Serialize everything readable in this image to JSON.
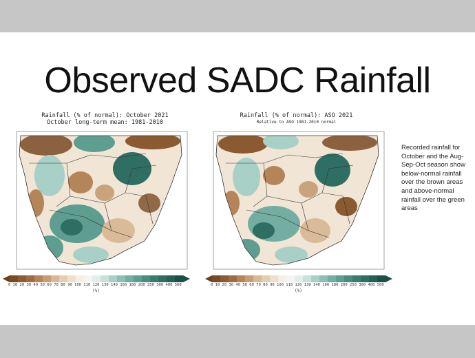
{
  "slide": {
    "title": "Observed SADC Rainfall",
    "description": "Recorded rainfall for October and the Aug-Sep-Oct season show below-normal rainfall over the brown areas and above-normal rainfall over the green areas"
  },
  "maps": [
    {
      "title_line1": "Rainfall (% of normal): October 2021",
      "title_line2": "October long-term mean: 1981-2010",
      "legend_ticks": "0  10  20  30  40  50  60  70  80  90 100 110 120 130 140 160 180 200 250 300 400 500",
      "unit": "(%)"
    },
    {
      "title_line1": "Rainfall (% of normal): ASO 2021",
      "title_line2": "Relative to ASO 1981-2010 normal",
      "legend_ticks": "0  10  20  30  40  50  60  70  80  90 100 110 120 130 140 160 180 200 250 300 400 500",
      "unit": "(%)"
    }
  ],
  "colors": {
    "brown_dark": "#7a4a24",
    "brown": "#b5855a",
    "tan": "#e8d3b8",
    "neutral": "#f4f1ec",
    "green_light": "#a9d0c7",
    "green": "#5d9e91",
    "green_dark": "#2f6e63"
  }
}
